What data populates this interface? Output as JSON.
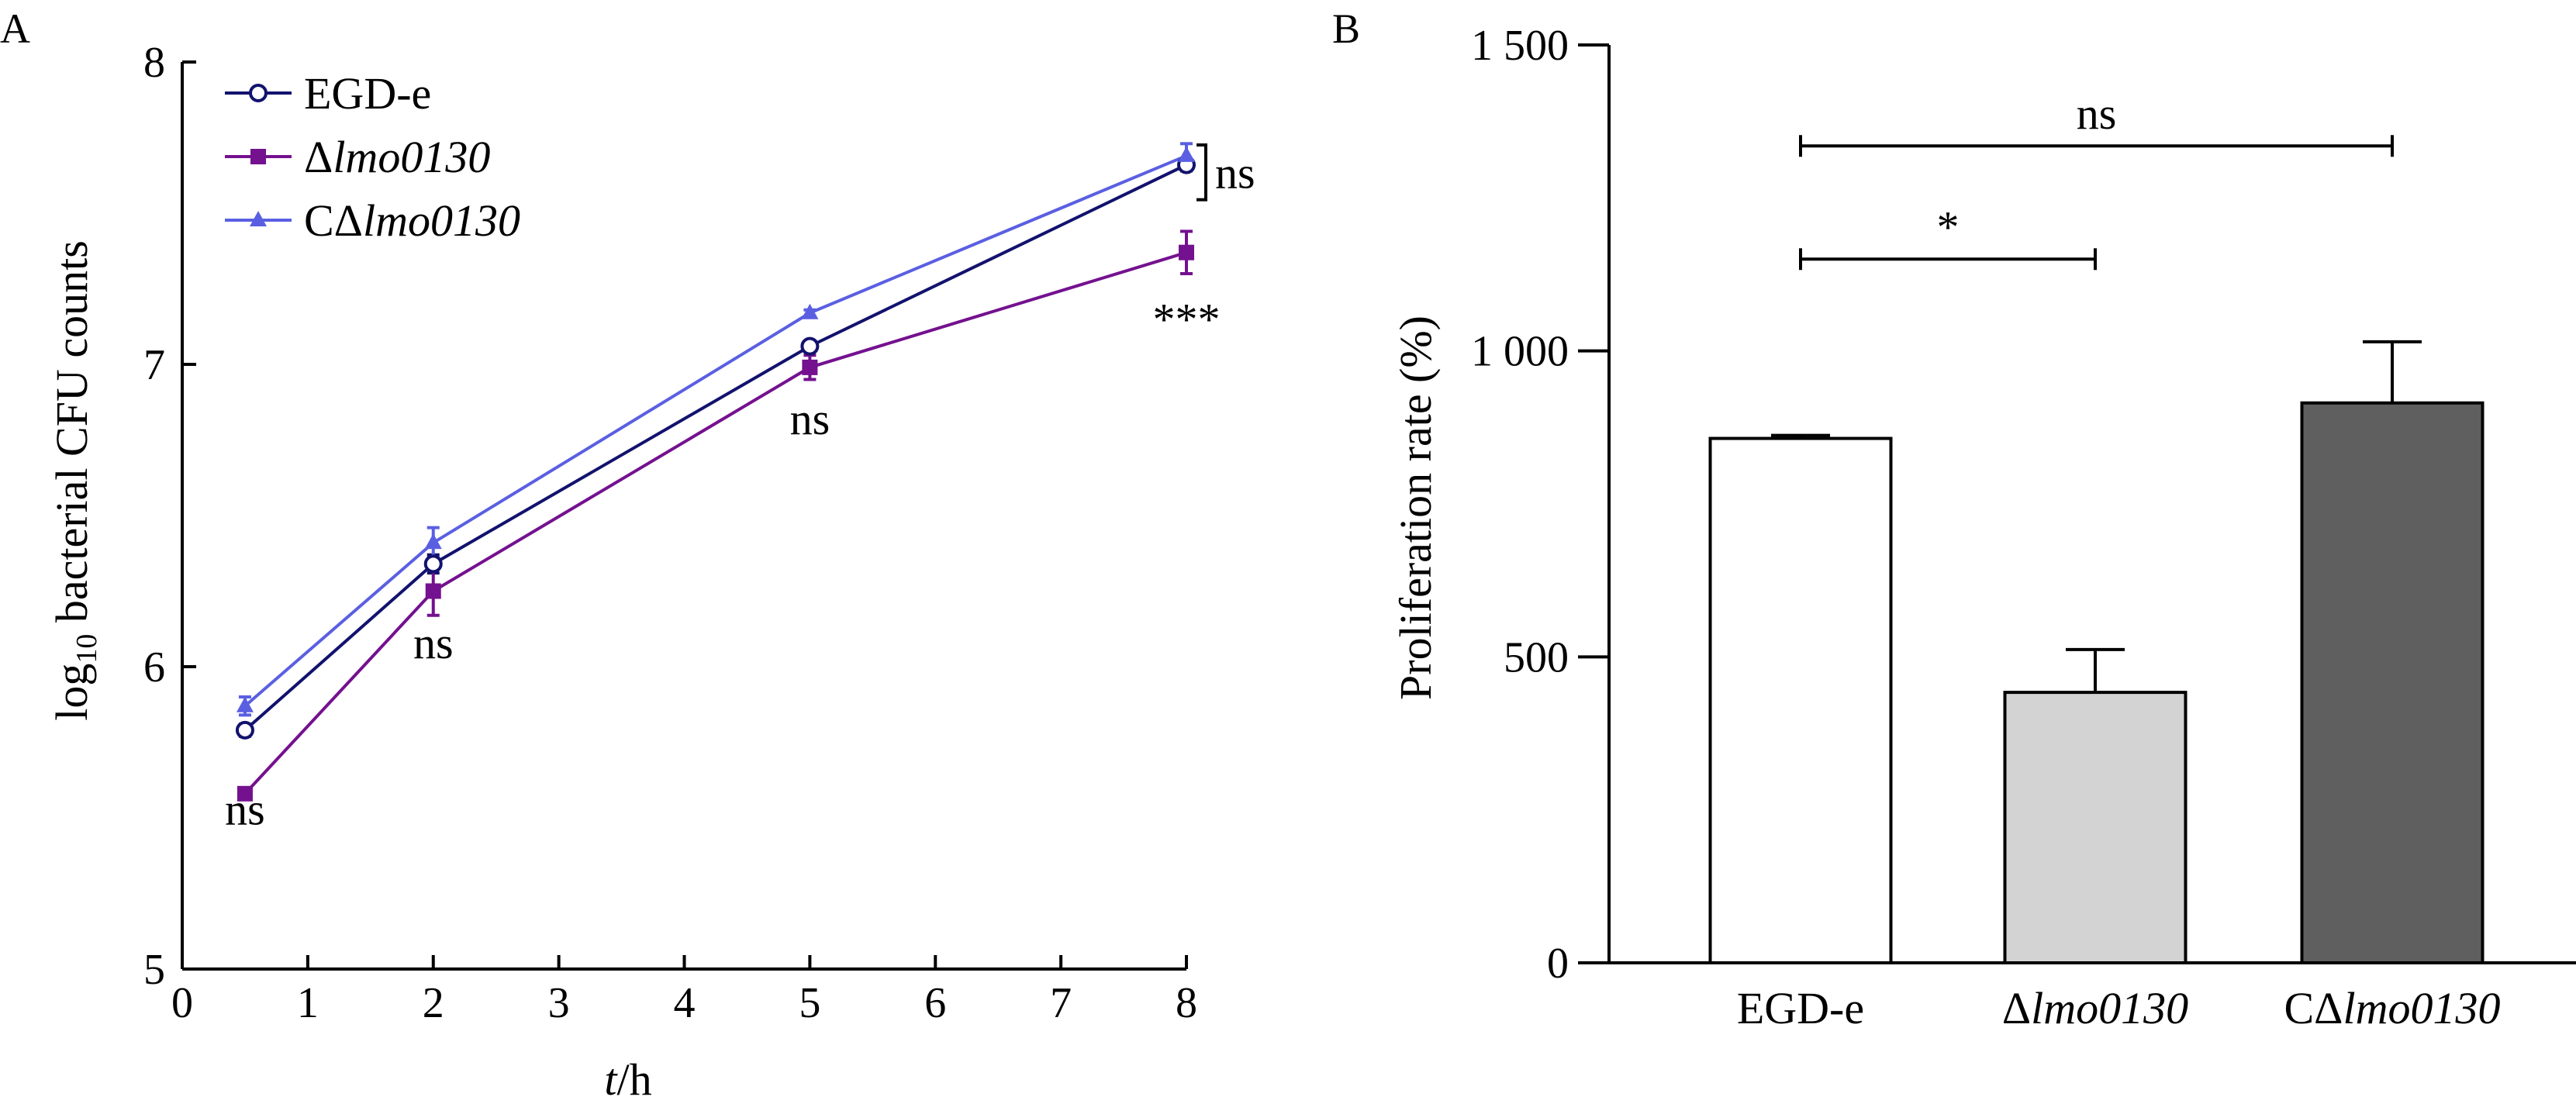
{
  "chart_data": [
    {
      "panel_label": "A",
      "type": "line",
      "xlabel_italic": "t",
      "xlabel_unit": "/h",
      "ylabel_prefix": "log",
      "ylabel_sub": "10",
      "ylabel_rest": " bacterial CFU counts",
      "xlim": [
        0,
        8
      ],
      "ylim": [
        5,
        8
      ],
      "xticks": [
        "0",
        "1",
        "2",
        "3",
        "4",
        "5",
        "6",
        "7",
        "8"
      ],
      "yticks": [
        "5",
        "6",
        "7",
        "8"
      ],
      "legend_position": "top-left",
      "series": [
        {
          "name_prefix": "",
          "name_italic": "",
          "name_plain": "EGD-e",
          "color": "#12126e",
          "marker": "open-circle",
          "x": [
            0.5,
            2,
            5,
            8
          ],
          "y": [
            5.79,
            6.34,
            7.06,
            7.66
          ],
          "err": [
            0.02,
            0.03,
            0.01,
            0.02
          ]
        },
        {
          "name_prefix": "Δ",
          "name_italic": "lmo0130",
          "name_plain": "",
          "color": "#74118f",
          "marker": "filled-square",
          "x": [
            0.5,
            2,
            5,
            8
          ],
          "y": [
            5.58,
            6.25,
            6.99,
            7.37
          ],
          "err": [
            0.01,
            0.08,
            0.04,
            0.07
          ]
        },
        {
          "name_prefix": "CΔ",
          "name_italic": "lmo0130",
          "name_plain": "",
          "color": "#5a5fe2",
          "marker": "filled-triangle",
          "x": [
            0.5,
            2,
            5,
            8
          ],
          "y": [
            5.87,
            6.41,
            7.17,
            7.69
          ],
          "err": [
            0.03,
            0.05,
            0.01,
            0.04
          ]
        }
      ],
      "annotations": [
        {
          "text": "ns",
          "x": 0.5,
          "y": 5.53
        },
        {
          "text": "ns",
          "x": 2,
          "y": 6.08
        },
        {
          "text": "ns",
          "x": 5,
          "y": 6.82
        },
        {
          "text": "***",
          "x": 8,
          "y": 7.15
        },
        {
          "text": "ns",
          "bracket": true,
          "x": 8,
          "y_from": 7.66,
          "y_to": 7.7
        }
      ]
    },
    {
      "panel_label": "B",
      "type": "bar",
      "ylabel": "Proliferation rate (%)",
      "ylim": [
        0,
        1500
      ],
      "yticks": [
        "0",
        "500",
        "1 000",
        "1 500"
      ],
      "categories": [
        {
          "prefix": "",
          "italic": "",
          "plain": "EGD-e"
        },
        {
          "prefix": "Δ",
          "italic": "lmo0130",
          "plain": ""
        },
        {
          "prefix": "CΔ",
          "italic": "lmo0130",
          "plain": ""
        }
      ],
      "values": [
        857,
        442,
        915
      ],
      "errors": [
        5,
        70,
        100
      ],
      "colors": [
        "#ffffff",
        "#d3d3d3",
        "#5f5f5f"
      ],
      "significance": [
        {
          "text": "*",
          "from": 0,
          "to": 1,
          "y": 1150
        },
        {
          "text": "ns",
          "from": 0,
          "to": 2,
          "y": 1335
        }
      ]
    }
  ]
}
